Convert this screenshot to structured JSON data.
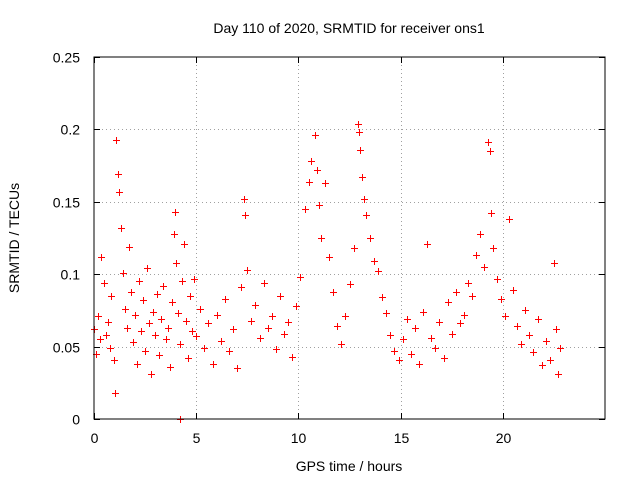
{
  "chart_data": {
    "type": "scatter",
    "title": "Day 110 of 2020, SRMTID for receiver ons1",
    "xlabel": "GPS time / hours",
    "ylabel": "SRMTID / TECUs",
    "xlim": [
      0,
      25
    ],
    "ylim": [
      0,
      0.25
    ],
    "x_ticks": [
      0,
      5,
      10,
      15,
      20
    ],
    "x_tick_labels": [
      "0",
      "5",
      "10",
      "15",
      "20"
    ],
    "y_ticks": [
      0,
      0.05,
      0.1,
      0.15,
      0.2,
      0.25
    ],
    "y_tick_labels": [
      "0",
      "0.05",
      "0.1",
      "0.15",
      "0.2",
      "0.25"
    ],
    "grid": true,
    "marker": "+",
    "marker_color": "#ff0000",
    "series": [
      {
        "name": "SRMTID",
        "points": [
          [
            0.0,
            0.062
          ],
          [
            0.1,
            0.045
          ],
          [
            0.2,
            0.071
          ],
          [
            0.3,
            0.055
          ],
          [
            0.35,
            0.112
          ],
          [
            0.5,
            0.094
          ],
          [
            0.6,
            0.058
          ],
          [
            0.7,
            0.067
          ],
          [
            0.8,
            0.049
          ],
          [
            0.85,
            0.085
          ],
          [
            1.0,
            0.041
          ],
          [
            1.05,
            0.018
          ],
          [
            1.1,
            0.193
          ],
          [
            1.15,
            0.169
          ],
          [
            1.2,
            0.157
          ],
          [
            1.3,
            0.132
          ],
          [
            1.4,
            0.101
          ],
          [
            1.5,
            0.076
          ],
          [
            1.6,
            0.063
          ],
          [
            1.7,
            0.119
          ],
          [
            1.8,
            0.088
          ],
          [
            1.9,
            0.053
          ],
          [
            2.0,
            0.072
          ],
          [
            2.1,
            0.038
          ],
          [
            2.2,
            0.095
          ],
          [
            2.3,
            0.061
          ],
          [
            2.4,
            0.082
          ],
          [
            2.5,
            0.047
          ],
          [
            2.6,
            0.104
          ],
          [
            2.7,
            0.066
          ],
          [
            2.8,
            0.031
          ],
          [
            2.9,
            0.074
          ],
          [
            3.0,
            0.058
          ],
          [
            3.1,
            0.086
          ],
          [
            3.2,
            0.044
          ],
          [
            3.3,
            0.069
          ],
          [
            3.4,
            0.092
          ],
          [
            3.5,
            0.055
          ],
          [
            3.6,
            0.063
          ],
          [
            3.7,
            0.036
          ],
          [
            3.8,
            0.081
          ],
          [
            3.9,
            0.128
          ],
          [
            3.95,
            0.143
          ],
          [
            4.0,
            0.108
          ],
          [
            4.1,
            0.073
          ],
          [
            4.2,
            0.052
          ],
          [
            4.22,
            0.0
          ],
          [
            4.3,
            0.095
          ],
          [
            4.4,
            0.121
          ],
          [
            4.5,
            0.068
          ],
          [
            4.6,
            0.042
          ],
          [
            4.7,
            0.085
          ],
          [
            4.8,
            0.061
          ],
          [
            4.9,
            0.097
          ],
          [
            5.0,
            0.057
          ],
          [
            5.2,
            0.076
          ],
          [
            5.4,
            0.049
          ],
          [
            5.6,
            0.066
          ],
          [
            5.8,
            0.038
          ],
          [
            6.0,
            0.072
          ],
          [
            6.2,
            0.054
          ],
          [
            6.4,
            0.083
          ],
          [
            6.6,
            0.047
          ],
          [
            6.8,
            0.062
          ],
          [
            7.0,
            0.035
          ],
          [
            7.2,
            0.091
          ],
          [
            7.35,
            0.152
          ],
          [
            7.4,
            0.141
          ],
          [
            7.5,
            0.103
          ],
          [
            7.7,
            0.068
          ],
          [
            7.9,
            0.079
          ],
          [
            8.1,
            0.056
          ],
          [
            8.3,
            0.094
          ],
          [
            8.5,
            0.063
          ],
          [
            8.7,
            0.071
          ],
          [
            8.9,
            0.048
          ],
          [
            9.1,
            0.085
          ],
          [
            9.3,
            0.059
          ],
          [
            9.5,
            0.067
          ],
          [
            9.7,
            0.043
          ],
          [
            9.9,
            0.078
          ],
          [
            10.1,
            0.098
          ],
          [
            10.3,
            0.145
          ],
          [
            10.5,
            0.164
          ],
          [
            10.6,
            0.178
          ],
          [
            10.8,
            0.196
          ],
          [
            10.9,
            0.172
          ],
          [
            11.0,
            0.148
          ],
          [
            11.1,
            0.125
          ],
          [
            11.3,
            0.163
          ],
          [
            11.5,
            0.112
          ],
          [
            11.7,
            0.088
          ],
          [
            11.9,
            0.064
          ],
          [
            12.1,
            0.052
          ],
          [
            12.3,
            0.071
          ],
          [
            12.5,
            0.093
          ],
          [
            12.7,
            0.118
          ],
          [
            12.9,
            0.204
          ],
          [
            12.95,
            0.198
          ],
          [
            13.0,
            0.186
          ],
          [
            13.1,
            0.167
          ],
          [
            13.2,
            0.152
          ],
          [
            13.3,
            0.141
          ],
          [
            13.5,
            0.125
          ],
          [
            13.7,
            0.109
          ],
          [
            13.9,
            0.102
          ],
          [
            14.1,
            0.084
          ],
          [
            14.3,
            0.073
          ],
          [
            14.5,
            0.058
          ],
          [
            14.7,
            0.047
          ],
          [
            14.9,
            0.041
          ],
          [
            15.1,
            0.055
          ],
          [
            15.3,
            0.069
          ],
          [
            15.5,
            0.045
          ],
          [
            15.7,
            0.063
          ],
          [
            15.9,
            0.038
          ],
          [
            16.1,
            0.074
          ],
          [
            16.3,
            0.121
          ],
          [
            16.5,
            0.056
          ],
          [
            16.7,
            0.049
          ],
          [
            16.9,
            0.067
          ],
          [
            17.1,
            0.042
          ],
          [
            17.3,
            0.081
          ],
          [
            17.5,
            0.059
          ],
          [
            17.7,
            0.088
          ],
          [
            17.9,
            0.066
          ],
          [
            18.1,
            0.072
          ],
          [
            18.3,
            0.094
          ],
          [
            18.5,
            0.085
          ],
          [
            18.7,
            0.113
          ],
          [
            18.9,
            0.128
          ],
          [
            19.1,
            0.105
          ],
          [
            19.3,
            0.191
          ],
          [
            19.35,
            0.185
          ],
          [
            19.4,
            0.142
          ],
          [
            19.5,
            0.118
          ],
          [
            19.7,
            0.097
          ],
          [
            19.9,
            0.083
          ],
          [
            20.1,
            0.071
          ],
          [
            20.3,
            0.138
          ],
          [
            20.5,
            0.089
          ],
          [
            20.7,
            0.064
          ],
          [
            20.9,
            0.052
          ],
          [
            21.1,
            0.075
          ],
          [
            21.3,
            0.058
          ],
          [
            21.5,
            0.046
          ],
          [
            21.7,
            0.069
          ],
          [
            21.9,
            0.037
          ],
          [
            22.1,
            0.054
          ],
          [
            22.3,
            0.041
          ],
          [
            22.5,
            0.108
          ],
          [
            22.6,
            0.062
          ],
          [
            22.7,
            0.031
          ],
          [
            22.8,
            0.049
          ]
        ]
      }
    ]
  }
}
